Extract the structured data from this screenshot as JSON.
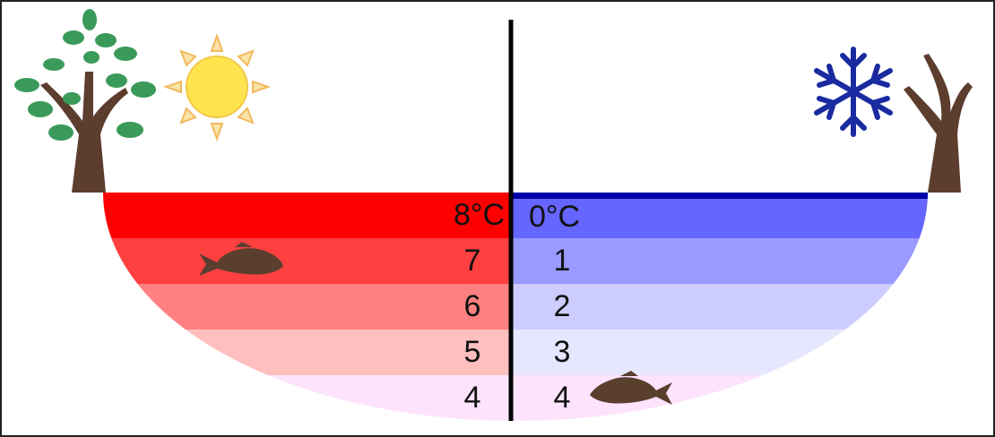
{
  "summer": {
    "layers": [
      "8°C",
      "7",
      "6",
      "5",
      "4"
    ]
  },
  "winter": {
    "layers": [
      "0°C",
      "1",
      "2",
      "3",
      "4"
    ]
  }
}
